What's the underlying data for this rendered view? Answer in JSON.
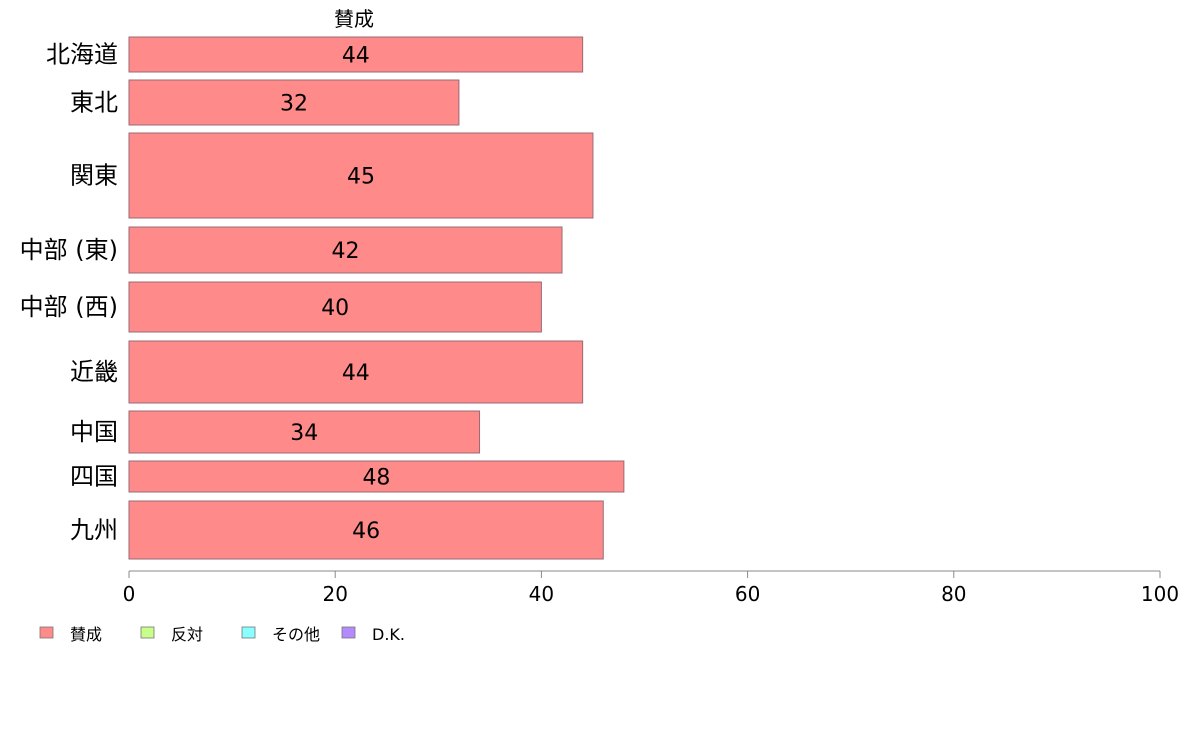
{
  "chart_data": {
    "type": "bar",
    "orientation": "horizontal",
    "panel_title": "賛成",
    "categories": [
      "北海道",
      "東北",
      "関東",
      "中部 (東)",
      "中部 (西)",
      "近畿",
      "中国",
      "四国",
      "九州"
    ],
    "series": [
      {
        "name": "賛成",
        "values": [
          44,
          32,
          45,
          42,
          40,
          44,
          34,
          48,
          46
        ]
      }
    ],
    "xlim": [
      0,
      100
    ],
    "xticks": [
      0,
      20,
      40,
      60,
      80,
      100
    ],
    "grid": false,
    "legend_position": "bottom-left",
    "legend": [
      {
        "label": "賛成",
        "color": "#FF8A8A"
      },
      {
        "label": "反対",
        "color": "#C8FF8A"
      },
      {
        "label": "その他",
        "color": "#8AFFFF"
      },
      {
        "label": "D.K.",
        "color": "#B68AFF"
      }
    ],
    "bar_color": "#FF8A8A",
    "bar_stroke": "#9A6A74",
    "axis_color": "#888888"
  }
}
